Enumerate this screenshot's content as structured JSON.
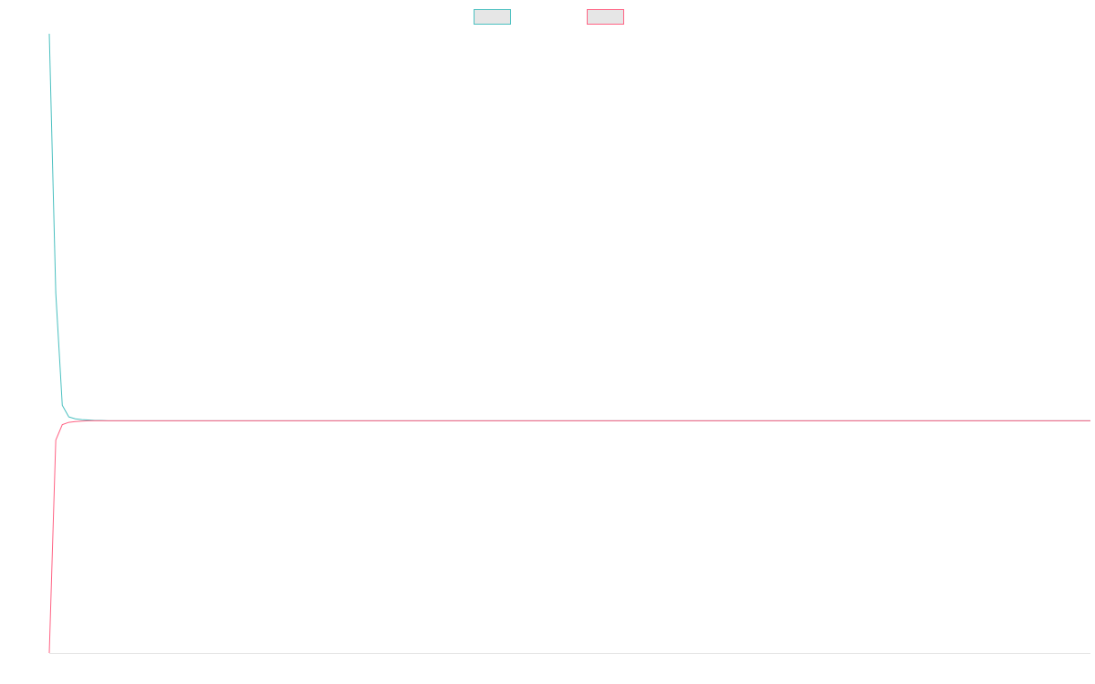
{
  "chart_data": {
    "type": "line",
    "title": "",
    "xlabel": "",
    "ylabel": "",
    "x": [
      0,
      1,
      2,
      3,
      4,
      5,
      6,
      7,
      8,
      9,
      10,
      11,
      12,
      13,
      14,
      15,
      16,
      17,
      18,
      19,
      20,
      21,
      22,
      23,
      24,
      25,
      26,
      27,
      28,
      29,
      30,
      31,
      32,
      33,
      34,
      35,
      36,
      37,
      38,
      39,
      40,
      41,
      42,
      43,
      44,
      45,
      46,
      47,
      48,
      49,
      50,
      51,
      52,
      53,
      54,
      55,
      56,
      57,
      58,
      59,
      60,
      61,
      62,
      63,
      64,
      65,
      66,
      67,
      68,
      69,
      70,
      71,
      72,
      73,
      74,
      75,
      76,
      77,
      78,
      79,
      80,
      81,
      82,
      83,
      84,
      85,
      86,
      87,
      88,
      89,
      90,
      91,
      92,
      93,
      94,
      95,
      96,
      97,
      98,
      99,
      100,
      101,
      102,
      103,
      104,
      105,
      106,
      107,
      108,
      109,
      110,
      111,
      112,
      113,
      114,
      115,
      116,
      117,
      118,
      119,
      120,
      121,
      122,
      123,
      124,
      125,
      126,
      127,
      128,
      129,
      130,
      131,
      132,
      133,
      134,
      135,
      136,
      137,
      138,
      139,
      140,
      141,
      142,
      143,
      144,
      145,
      146,
      147,
      148,
      149,
      150,
      151,
      152,
      153,
      154,
      155,
      156,
      157,
      158,
      159,
      160
    ],
    "series": [
      {
        "name": "",
        "color": "#4bc0c0",
        "values": [
          1.0,
          0.33,
          0.04,
          0.01,
          0.005,
          0.003,
          0.002,
          0.001,
          0.001,
          0,
          0,
          0,
          0,
          0,
          0,
          0,
          0,
          0,
          0,
          0,
          0,
          0,
          0,
          0,
          0,
          0,
          0,
          0,
          0,
          0,
          0,
          0,
          0,
          0,
          0,
          0,
          0,
          0,
          0,
          0,
          0,
          0,
          0,
          0,
          0,
          0,
          0,
          0,
          0,
          0,
          0,
          0,
          0,
          0,
          0,
          0,
          0,
          0,
          0,
          0,
          0,
          0,
          0,
          0,
          0,
          0,
          0,
          0,
          0,
          0,
          0,
          0,
          0,
          0,
          0,
          0,
          0,
          0,
          0,
          0,
          0,
          0,
          0,
          0,
          0,
          0,
          0,
          0,
          0,
          0,
          0,
          0,
          0,
          0,
          0,
          0,
          0,
          0,
          0,
          0,
          0,
          0,
          0,
          0,
          0,
          0,
          0,
          0,
          0,
          0,
          0,
          0,
          0,
          0,
          0,
          0,
          0,
          0,
          0,
          0,
          0,
          0,
          0,
          0,
          0,
          0,
          0,
          0,
          0,
          0,
          0,
          0,
          0,
          0,
          0,
          0,
          0,
          0,
          0,
          0,
          0,
          0,
          0,
          0,
          0,
          0,
          0,
          0,
          0,
          0,
          0,
          0,
          0,
          0,
          0,
          0,
          0,
          0,
          0,
          0,
          0
        ]
      },
      {
        "name": "",
        "color": "#ff6384",
        "values": [
          -0.6,
          -0.05,
          -0.01,
          -0.004,
          -0.002,
          -0.001,
          0,
          0,
          0,
          0,
          0,
          0,
          0,
          0,
          0,
          0,
          0,
          0,
          0,
          0,
          0,
          0,
          0,
          0,
          0,
          0,
          0,
          0,
          0,
          0,
          0,
          0,
          0,
          0,
          0,
          0,
          0,
          0,
          0,
          0,
          0,
          0,
          0,
          0,
          0,
          0,
          0,
          0,
          0,
          0,
          0,
          0,
          0,
          0,
          0,
          0,
          0,
          0,
          0,
          0,
          0,
          0,
          0,
          0,
          0,
          0,
          0,
          0,
          0,
          0,
          0,
          0,
          0,
          0,
          0,
          0,
          0,
          0,
          0,
          0,
          0,
          0,
          0,
          0,
          0,
          0,
          0,
          0,
          0,
          0,
          0,
          0,
          0,
          0,
          0,
          0,
          0,
          0,
          0,
          0,
          0,
          0,
          0,
          0,
          0,
          0,
          0,
          0,
          0,
          0,
          0,
          0,
          0,
          0,
          0,
          0,
          0,
          0,
          0,
          0,
          0,
          0,
          0,
          0,
          0,
          0,
          0,
          0,
          0,
          0,
          0,
          0,
          0,
          0,
          0,
          0,
          0,
          0,
          0,
          0,
          0,
          0,
          0,
          0,
          0,
          0,
          0,
          0,
          0,
          0,
          0,
          0,
          0,
          0,
          0,
          0,
          0,
          0,
          0,
          0,
          0
        ]
      }
    ],
    "xlim": [
      0,
      160
    ],
    "ylim": [
      -0.6,
      1.0
    ],
    "grid": false,
    "legend": "top"
  }
}
